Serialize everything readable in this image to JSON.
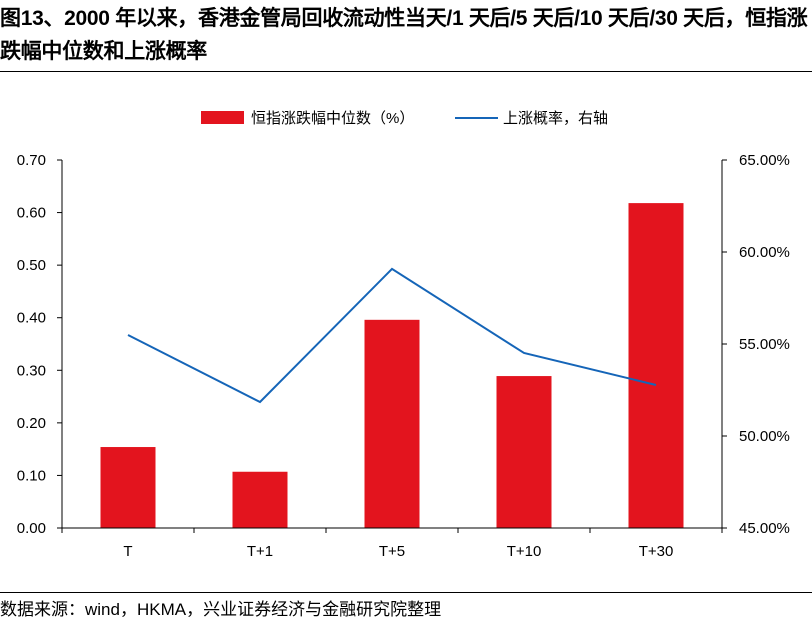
{
  "header": {
    "title": "图13、2000 年以来，香港金管局回收流动性当天/1 天后/5 天后/10 天后/30 天后，恒指涨跌幅中位数和上涨概率"
  },
  "footer": {
    "source": "数据来源：wind，HKMA，兴业证券经济与金融研究院整理"
  },
  "colors": {
    "bar": "#E3141E",
    "line": "#1565B8"
  },
  "chart_data": {
    "type": "bar+line",
    "title": "图13、2000 年以来，香港金管局回收流动性当天/1 天后/5 天后/10 天后/30 天后，恒指涨跌幅中位数和上涨概率",
    "categories": [
      "T",
      "T+1",
      "T+5",
      "T+10",
      "T+30"
    ],
    "series": [
      {
        "name": "恒指涨跌幅中位数（%）",
        "type": "bar",
        "axis": "left",
        "values": [
          0.154,
          0.107,
          0.396,
          0.289,
          0.618
        ]
      },
      {
        "name": "上涨概率，右轴",
        "type": "line",
        "axis": "right",
        "values": [
          55.49,
          51.85,
          59.08,
          54.51,
          52.77
        ]
      }
    ],
    "left_axis": {
      "ylim": [
        0,
        0.7
      ],
      "ticks": [
        "0.00",
        "0.10",
        "0.20",
        "0.30",
        "0.40",
        "0.50",
        "0.60",
        "0.70"
      ]
    },
    "right_axis": {
      "ylim": [
        45,
        65
      ],
      "ticks": [
        "45.00%",
        "50.00%",
        "55.00%",
        "60.00%",
        "65.00%"
      ]
    },
    "legend": {
      "position": "top",
      "entries": [
        "恒指涨跌幅中位数（%）",
        "上涨概率，右轴"
      ]
    },
    "grid": false,
    "xlabel": "",
    "ylabel": ""
  }
}
